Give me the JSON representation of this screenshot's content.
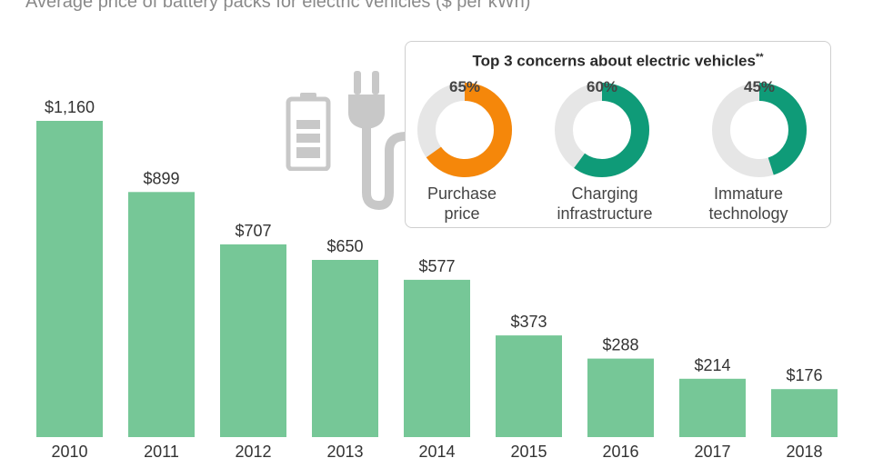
{
  "subtitle": "Average price of battery packs for electric vehicles ($ per kWh)",
  "colors": {
    "bar": "#76c797",
    "orange": "#f5870a",
    "teal": "#0f9b78",
    "track": "#e6e6e6",
    "icon_gray": "#c8c8c8"
  },
  "chart_data": {
    "type": "bar",
    "title": "",
    "subtitle": "Average price of battery packs for electric vehicles ($ per kWh)",
    "xlabel": "",
    "ylabel": "",
    "categories": [
      "2010",
      "2011",
      "2012",
      "2013",
      "2014",
      "2015",
      "2016",
      "2017",
      "2018"
    ],
    "values": [
      1160,
      899,
      707,
      650,
      577,
      373,
      288,
      214,
      176
    ],
    "value_labels": [
      "$1,160",
      "$899",
      "$707",
      "$650",
      "$577",
      "$373",
      "$288",
      "$214",
      "$176"
    ],
    "ylim": [
      0,
      1160
    ],
    "grid": false
  },
  "concerns": {
    "title": "Top 3 concerns about electric vehicles",
    "title_mark": "**",
    "items": [
      {
        "pct": 65,
        "pct_label": "65%",
        "label": "Purchase\nprice",
        "color": "#f5870a"
      },
      {
        "pct": 60,
        "pct_label": "60%",
        "label": "Charging\ninfrastructure",
        "color": "#0f9b78"
      },
      {
        "pct": 45,
        "pct_label": "45%",
        "label": "Immature\ntechnology",
        "color": "#0f9b78"
      }
    ]
  },
  "icons": {
    "battery": "battery-icon",
    "plug": "plug-icon"
  }
}
